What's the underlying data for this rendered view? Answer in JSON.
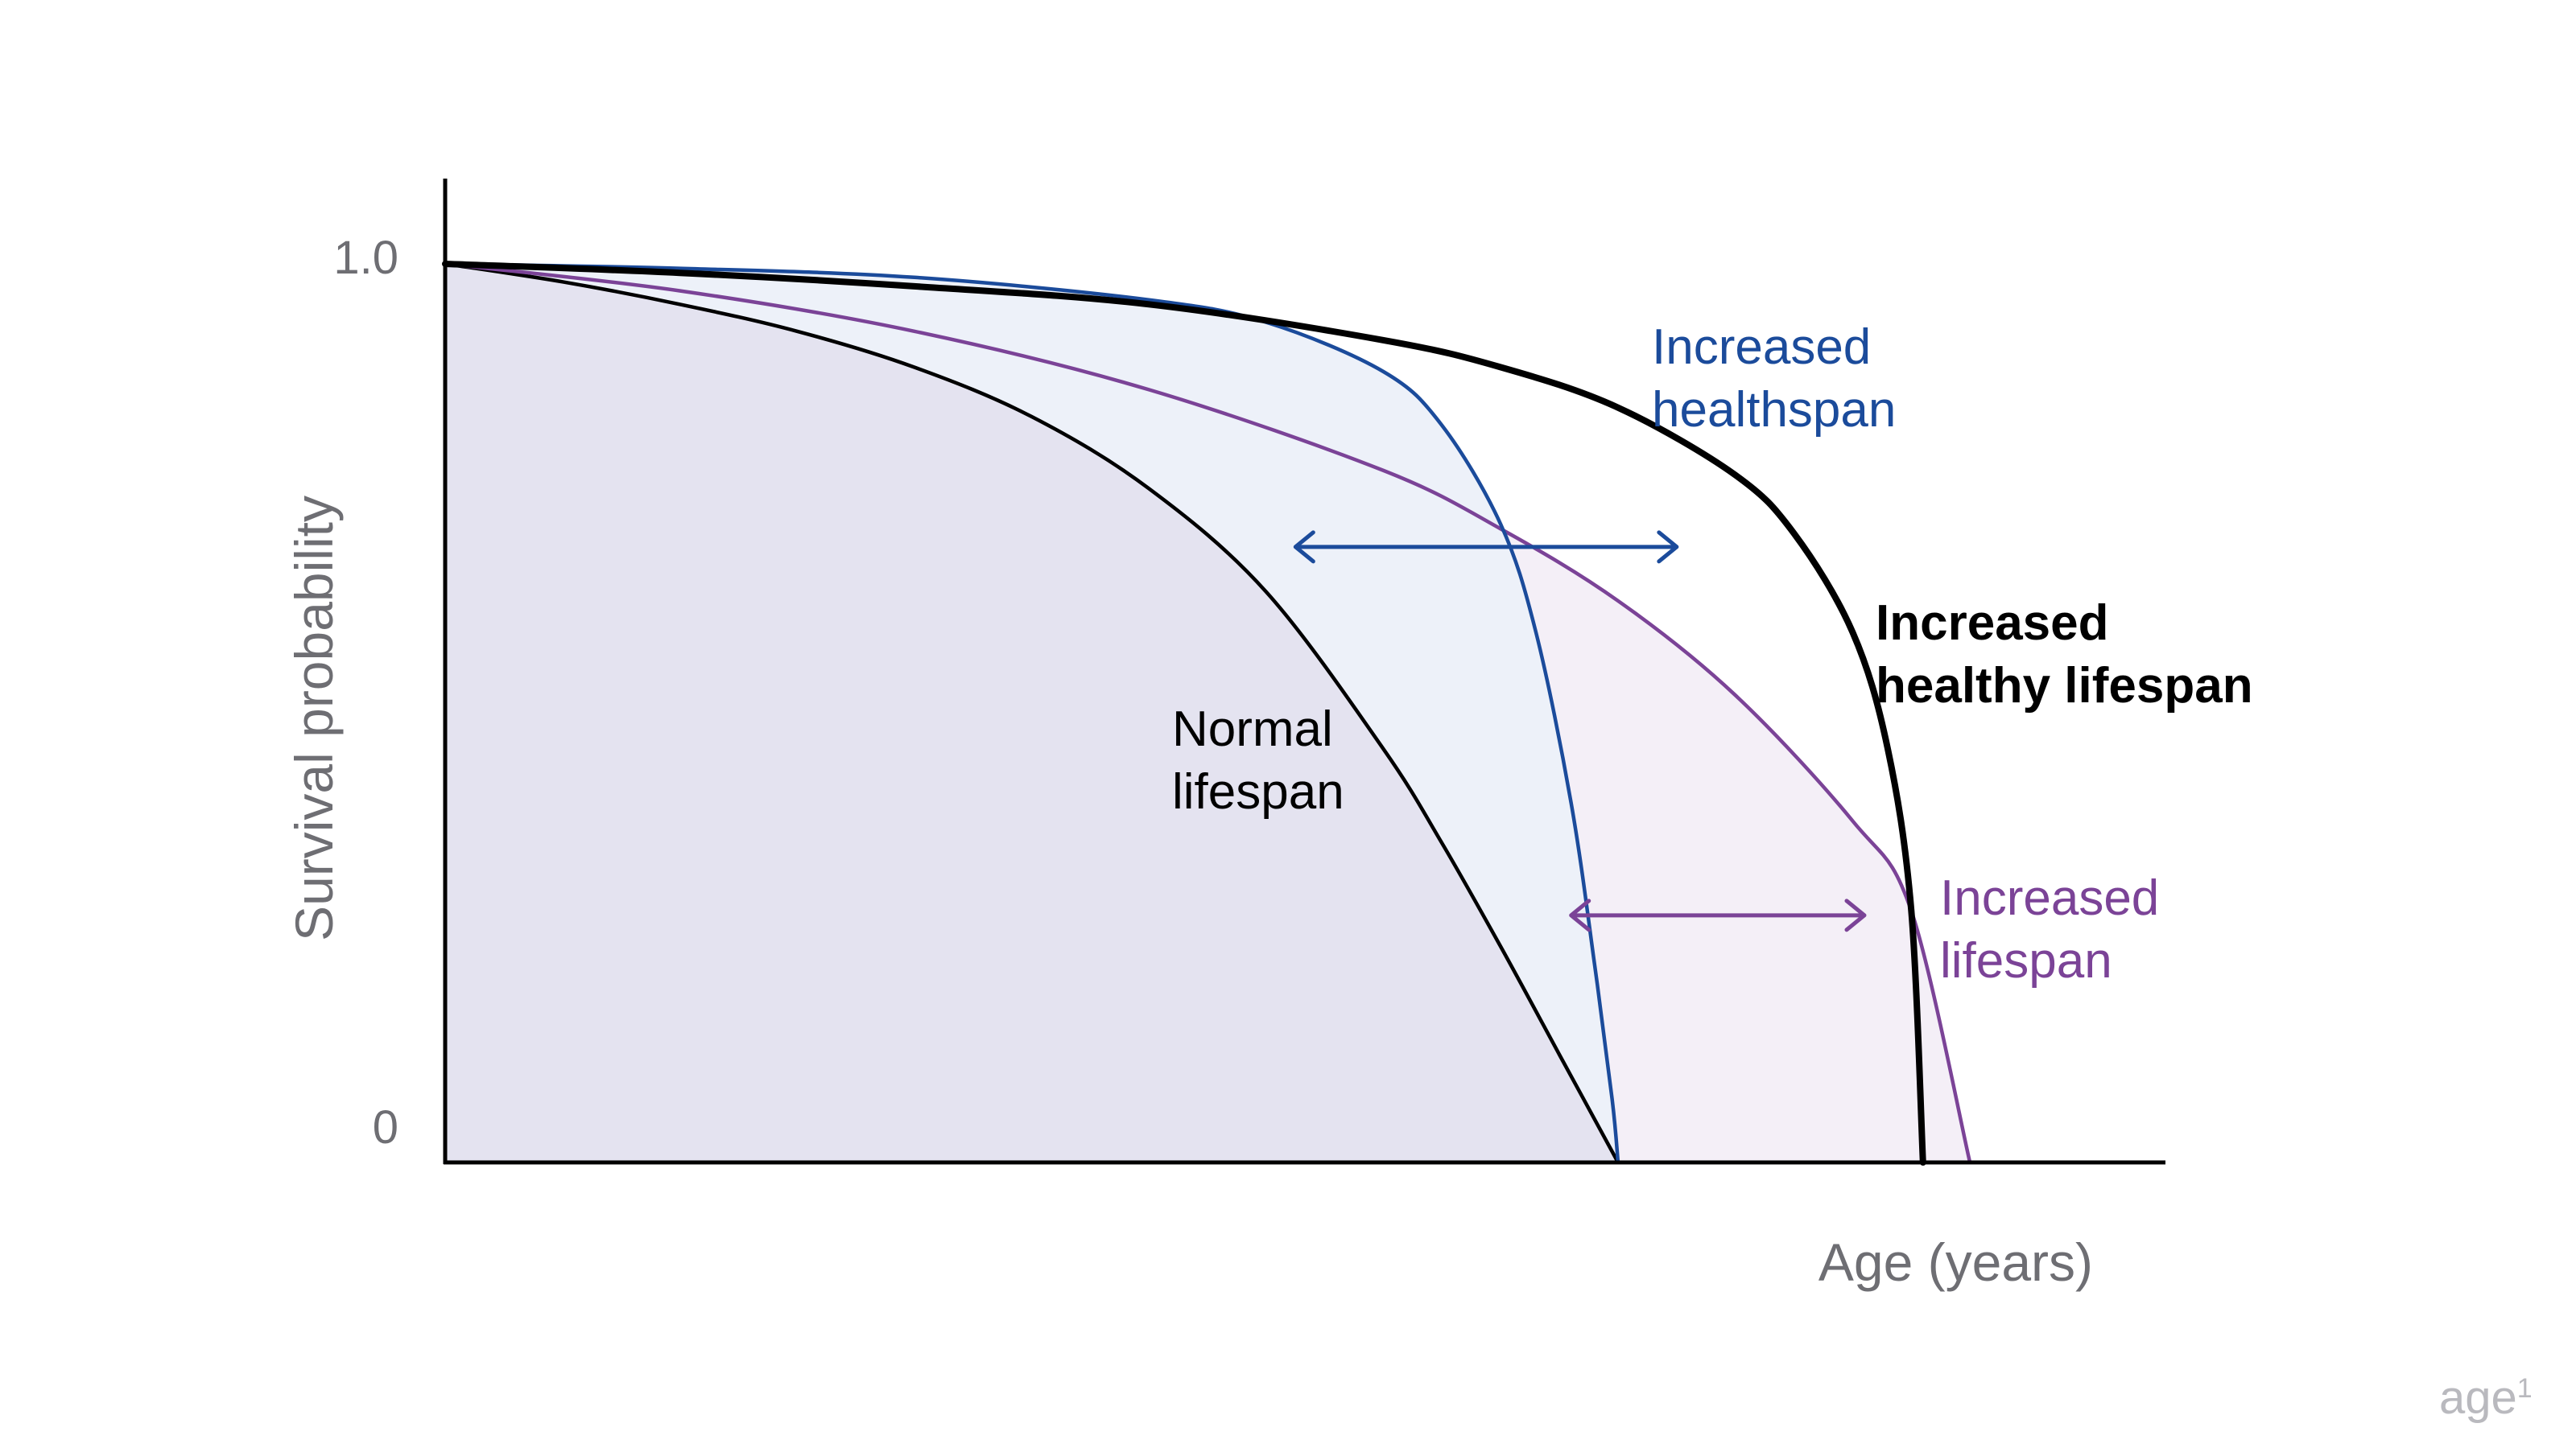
{
  "chart_data": {
    "type": "line",
    "xlabel": "Age (years)",
    "ylabel": "Survival probability",
    "yticks": [
      "1.0",
      "0"
    ],
    "ylim": [
      0,
      1
    ],
    "xlim": [
      0,
      1.465
    ],
    "grid": false,
    "series": [
      {
        "key": "normal",
        "color": "#000000",
        "x": [
          0,
          0.1,
          0.2,
          0.3,
          0.4,
          0.5,
          0.6,
          0.7,
          0.8,
          0.85,
          0.9,
          0.95,
          1.0
        ],
        "y": [
          1.0,
          0.98,
          0.955,
          0.925,
          0.885,
          0.83,
          0.75,
          0.635,
          0.46,
          0.355,
          0.24,
          0.12,
          0.0
        ]
      },
      {
        "key": "health",
        "color": "#1b4b9b",
        "x": [
          0,
          0.2,
          0.4,
          0.6,
          0.7,
          0.8,
          0.85,
          0.9,
          0.93,
          0.96,
          0.98,
          0.995,
          1.0
        ],
        "y": [
          1.0,
          0.995,
          0.985,
          0.96,
          0.935,
          0.88,
          0.82,
          0.71,
          0.59,
          0.4,
          0.22,
          0.07,
          0.0
        ]
      },
      {
        "key": "lifespan",
        "color": "#7b4397",
        "x": [
          0,
          0.2,
          0.4,
          0.6,
          0.8,
          0.9,
          1.0,
          1.1,
          1.2,
          1.25,
          1.3
        ],
        "y": [
          1.0,
          0.97,
          0.925,
          0.86,
          0.77,
          0.705,
          0.625,
          0.52,
          0.38,
          0.28,
          0.0
        ]
      },
      {
        "key": "healthy_lifespan",
        "color": "#000000",
        "x": [
          0,
          0.2,
          0.4,
          0.6,
          0.8,
          0.9,
          1.0,
          1.1,
          1.15,
          1.2,
          1.23,
          1.25,
          1.26
        ],
        "y": [
          1.0,
          0.99,
          0.975,
          0.955,
          0.915,
          0.885,
          0.84,
          0.765,
          0.7,
          0.59,
          0.46,
          0.28,
          0.0
        ]
      }
    ],
    "arrows": [
      {
        "key": "healthspan_arrow",
        "color": "#1b4b9b",
        "y": 0.685,
        "x1": 0.725,
        "x2": 1.05
      },
      {
        "key": "lifespan_arrow",
        "color": "#7b4397",
        "y": 0.275,
        "x1": 0.96,
        "x2": 1.21
      }
    ],
    "annotations": [
      {
        "key": "normal",
        "lines": [
          "Normal",
          "lifespan"
        ],
        "color": "#000000",
        "bold": false
      },
      {
        "key": "health",
        "lines": [
          "Increased",
          "healthspan"
        ],
        "color": "#1b4b9b",
        "bold": false
      },
      {
        "key": "healthy_lifespan",
        "lines": [
          "Increased",
          "healthy lifespan"
        ],
        "color": "#000000",
        "bold": true
      },
      {
        "key": "lifespan",
        "lines": [
          "Increased",
          "lifespan"
        ],
        "color": "#7b4397",
        "bold": false
      }
    ],
    "fills": {
      "normal": "#e4e3f0",
      "health": "#edf1f9",
      "lifespan": "#f4eff7"
    }
  },
  "brand": {
    "text": "age",
    "superscript": "1"
  }
}
